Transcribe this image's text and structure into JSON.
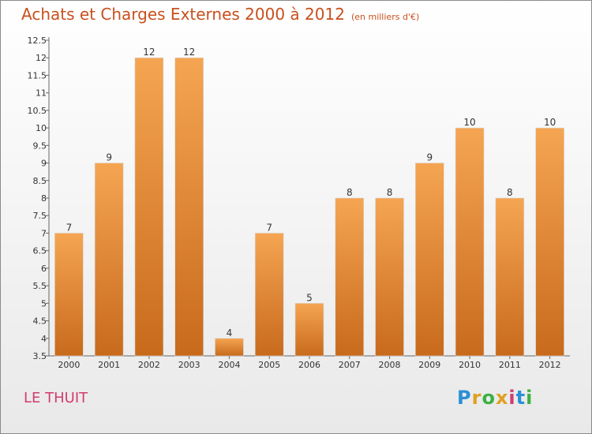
{
  "title": "Achats et Charges Externes 2000 à 2012",
  "unit": "(en milliers d'€)",
  "location": "LE THUIT",
  "logo": {
    "text": "Proxiti",
    "colors": [
      "#2a8fd6",
      "#e0a020",
      "#3cb043",
      "#e0a020",
      "#d23c6e",
      "#2a8fd6",
      "#3cb043"
    ]
  },
  "colors": {
    "bar_light": "#f5a552",
    "bar_dark": "#c86a1c",
    "title": "#c8501e",
    "location": "#d23c6e"
  },
  "chart_data": {
    "type": "bar",
    "categories": [
      "2000",
      "2001",
      "2002",
      "2003",
      "2004",
      "2005",
      "2006",
      "2007",
      "2008",
      "2009",
      "2010",
      "2011",
      "2012"
    ],
    "values": [
      7,
      9,
      12,
      12,
      4,
      7,
      5,
      8,
      8,
      9,
      10,
      8,
      10
    ],
    "data_labels": [
      "7",
      "9",
      "12",
      "12",
      "4",
      "7",
      "5",
      "8",
      "8",
      "9",
      "10",
      "8",
      "10"
    ],
    "ylim": [
      3.5,
      12.5
    ],
    "yticks": [
      "3.5",
      "4",
      "4.5",
      "5",
      "5.5",
      "6",
      "6.5",
      "7",
      "7.5",
      "8",
      "8.5",
      "9",
      "9.5",
      "10",
      "10.5",
      "11",
      "11.5",
      "12",
      "12.5"
    ],
    "grid": false
  }
}
